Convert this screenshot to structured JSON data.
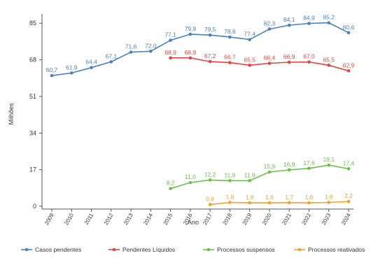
{
  "chart_data": {
    "type": "line",
    "xlabel": "Ano",
    "ylabel": "Milhões",
    "x": [
      "2009",
      "2010",
      "2011",
      "2012",
      "2013",
      "2014",
      "2015",
      "2016",
      "2017",
      "2018",
      "2019",
      "2020",
      "2021",
      "2022",
      "2023",
      "2024"
    ],
    "yticks": [
      0,
      17,
      34,
      51,
      68,
      85
    ],
    "ytick_labels": [
      "0",
      "17",
      "34",
      "51",
      "68",
      "85"
    ],
    "ylim": [
      0,
      88
    ],
    "grid": false,
    "legend_position": "bottom",
    "series": [
      {
        "name": "Casos pendentes",
        "color": "#4a7fc1",
        "values": [
          60.7,
          61.9,
          64.4,
          67.1,
          71.6,
          72.0,
          77.1,
          79.9,
          79.5,
          78.6,
          77.4,
          82.3,
          84.1,
          84.9,
          85.2,
          80.6
        ],
        "labels": [
          "60,7",
          "61,9",
          "64,4",
          "67,1",
          "71,6",
          "72,0",
          "77,1",
          "79,9",
          "79,5",
          "78,6",
          "77,4",
          "82,3",
          "84,1",
          "84,9",
          "85,2",
          "80,6"
        ]
      },
      {
        "name": "Pendentes Líquidos",
        "color": "#e0463f",
        "values": [
          null,
          null,
          null,
          null,
          null,
          null,
          68.9,
          68.9,
          67.2,
          66.7,
          65.5,
          66.4,
          66.9,
          67.0,
          65.5,
          62.9
        ],
        "labels": [
          null,
          null,
          null,
          null,
          null,
          null,
          "68,9",
          "68,9",
          "67,2",
          "66,7",
          "65,5",
          "66,4",
          "66,9",
          "67,0",
          "65,5",
          "62,9"
        ]
      },
      {
        "name": "Processos suspensos",
        "color": "#6cbf4f",
        "values": [
          null,
          null,
          null,
          null,
          null,
          null,
          8.2,
          11.0,
          12.2,
          11.9,
          11.9,
          15.9,
          16.9,
          17.6,
          19.1,
          17.4
        ],
        "labels": [
          null,
          null,
          null,
          null,
          null,
          null,
          "8,2",
          "11,0",
          "12,2",
          "11,9",
          "11,9",
          "15,9",
          "16,9",
          "17,6",
          "19,1",
          "17,4"
        ]
      },
      {
        "name": "Processos reativados",
        "color": "#f2a12e",
        "values": [
          null,
          null,
          null,
          null,
          null,
          null,
          null,
          null,
          0.8,
          1.8,
          1.6,
          1.6,
          1.7,
          1.6,
          1.8,
          2.2
        ],
        "labels": [
          null,
          null,
          null,
          null,
          null,
          null,
          null,
          null,
          "0,8",
          "1,8",
          "1,6",
          "1,6",
          "1,7",
          "1,6",
          "1,8",
          "2,2"
        ]
      }
    ]
  }
}
